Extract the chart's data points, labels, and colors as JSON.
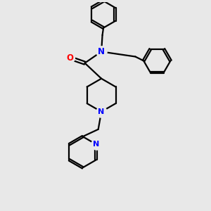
{
  "bg_color": "#e8e8e8",
  "bond_color": "#000000",
  "N_color": "#0000ff",
  "O_color": "#ff0000",
  "line_width": 1.6,
  "figsize": [
    3.0,
    3.0
  ],
  "dpi": 100,
  "xlim": [
    0,
    10
  ],
  "ylim": [
    0,
    10
  ]
}
